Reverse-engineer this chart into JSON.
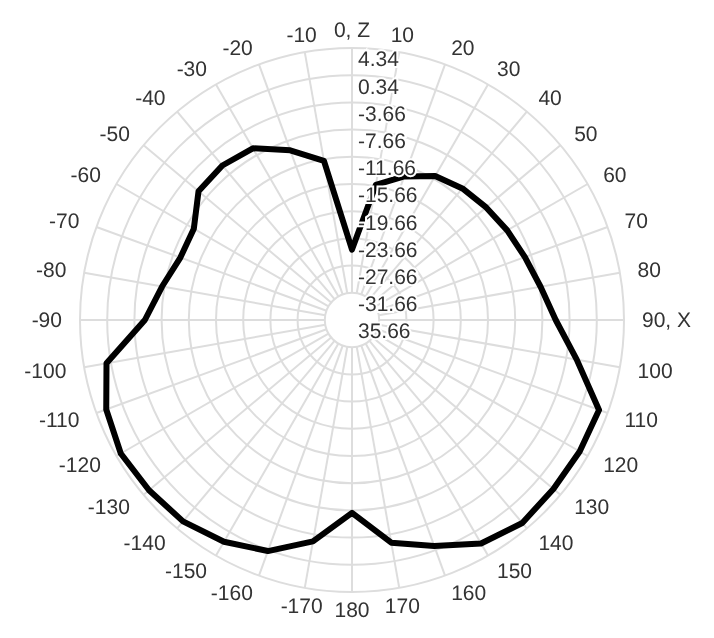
{
  "chart_data": {
    "type": "radar",
    "categories": [
      "0, Z",
      "10",
      "20",
      "30",
      "40",
      "50",
      "60",
      "70",
      "80",
      "90, X",
      "100",
      "110",
      "120",
      "130",
      "140",
      "150",
      "160",
      "170",
      "180",
      "-170",
      "-160",
      "-150",
      "-140",
      "-130",
      "-120",
      "-110",
      "-100",
      "-90",
      "-80",
      "-70",
      "-60",
      "-50",
      "-40",
      "-30",
      "-20",
      "-10"
    ],
    "series": [
      {
        "color": "#000000",
        "values": [
          -25.3,
          -15.5,
          -13.2,
          -11.2,
          -10.4,
          -9.9,
          -9.3,
          -8.6,
          -7.5,
          -5.7,
          -2.1,
          3.0,
          3.0,
          3.0,
          3.3,
          2.3,
          -0.3,
          -2.4,
          -7.3,
          -2.6,
          0.5,
          2.0,
          3.0,
          3.3,
          3.6,
          2.8,
          1.0,
          -5.2,
          -7.3,
          -8.8,
          -8.8,
          -6.2,
          -6.0,
          -6.5,
          -9.1,
          -11.9
        ]
      }
    ],
    "ylim": [
      -35.66,
      4.34
    ],
    "yticks": [
      4.34,
      0.34,
      -3.66,
      -7.66,
      -11.66,
      -15.66,
      -19.66,
      -23.66,
      -27.66,
      -31.66,
      {
        "value": -35.66,
        "label": "35.66"
      }
    ],
    "grid": true
  }
}
